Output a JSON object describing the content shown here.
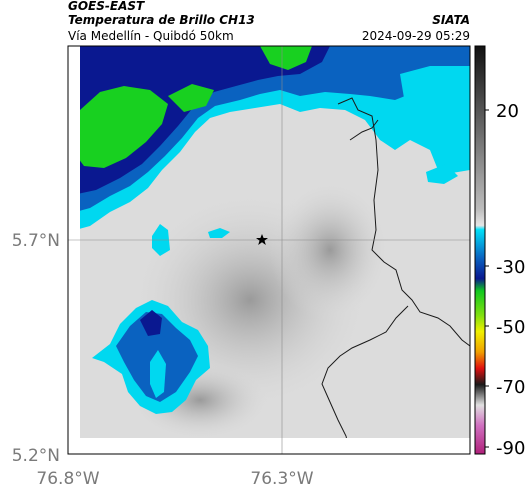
{
  "header": {
    "source_left": "GOES-EAST",
    "title": "Temperatura de Brillo CH13",
    "subtitle": "Vía Medellín - Quibdó 50km",
    "source_right": "SIATA",
    "datetime": "2024-09-29 05:29"
  },
  "axes": {
    "lat_ticks": [
      "5.7°N",
      "5.2°N"
    ],
    "lon_ticks": [
      "76.8°W",
      "76.3°W"
    ]
  },
  "colorbar": {
    "ticks": [
      "20",
      "-30",
      "-50",
      "-70",
      "-90"
    ]
  },
  "colors": {
    "frame": "#000000",
    "land_gray": "#dcdcdc",
    "cloud_cyan": "#00d8f0",
    "cloud_blue": "#0a62c0",
    "cloud_navy": "#0a1890",
    "cloud_green": "#18d020"
  },
  "marker": {
    "icon": "star-icon"
  }
}
